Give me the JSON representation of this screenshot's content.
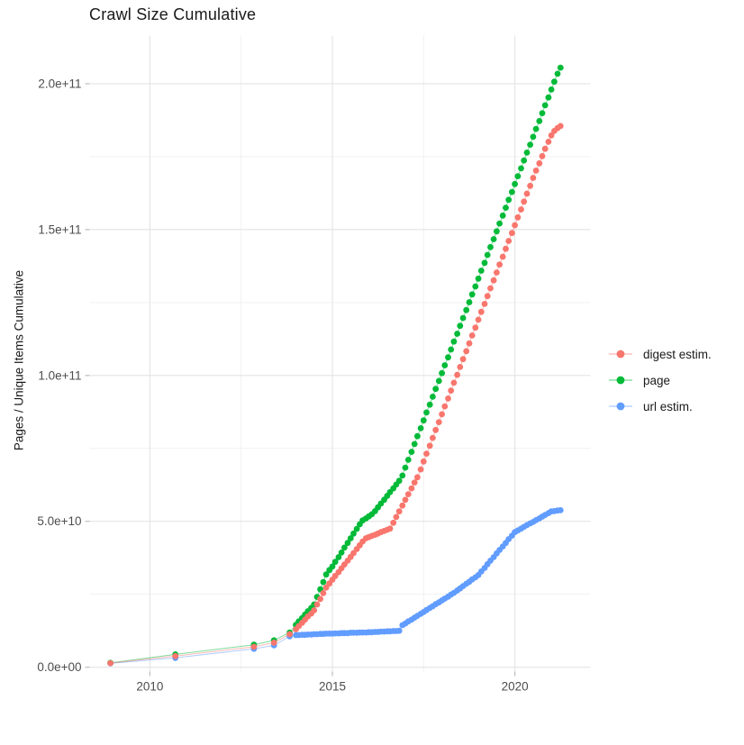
{
  "title": "Crawl Size Cumulative",
  "y_axis_title": "Pages / Unique Items Cumulative",
  "background_color": "#ffffff",
  "grid_major_color": "#e4e4e4",
  "grid_minor_color": "#f1f1f1",
  "tick_mark_color": "#bdbdbd",
  "tick_label_color": "#4d4d4d",
  "chart_data": {
    "type": "scatter",
    "title": "Crawl Size Cumulative",
    "xlabel": "",
    "ylabel": "Pages / Unique Items Cumulative",
    "legend_position": "right",
    "grid": true,
    "y_values_unit": "1e9 (billions of pages / unique items)",
    "xlim": [
      2008.35,
      2022.07
    ],
    "ylim": [
      -1.5,
      216.5
    ],
    "x_ticks": [
      {
        "value": 2010,
        "label": "2010"
      },
      {
        "value": 2015,
        "label": "2015"
      },
      {
        "value": 2020,
        "label": "2020"
      }
    ],
    "x_minor_ticks": [
      2012.5,
      2017.5
    ],
    "y_ticks": [
      {
        "value": 0,
        "label": "0.0e+00"
      },
      {
        "value": 50,
        "label": "5.0e+10"
      },
      {
        "value": 100,
        "label": "1.0e+11"
      },
      {
        "value": 150,
        "label": "1.5e+11"
      },
      {
        "value": 200,
        "label": "2.0e+11"
      }
    ],
    "y_minor_ticks": [
      25,
      75,
      125,
      175
    ],
    "series": [
      {
        "name": "digest estim.",
        "color": "#F8766D",
        "points": [
          [
            2008.92,
            1.4
          ],
          [
            2010.7,
            3.8
          ],
          [
            2012.85,
            7.0
          ],
          [
            2013.4,
            8.4
          ],
          [
            2013.83,
            11.3
          ],
          [
            2014.0,
            13.0
          ],
          [
            2014.08,
            14.1
          ],
          [
            2014.17,
            15.2
          ],
          [
            2014.25,
            16.3
          ],
          [
            2014.33,
            17.4
          ],
          [
            2014.42,
            18.4
          ],
          [
            2014.5,
            19.5
          ],
          [
            2014.58,
            21.5
          ],
          [
            2014.67,
            23.4
          ],
          [
            2014.75,
            25.4
          ],
          [
            2014.83,
            27.3
          ],
          [
            2014.92,
            28.7
          ],
          [
            2015.0,
            30.0
          ],
          [
            2015.08,
            31.3
          ],
          [
            2015.17,
            32.6
          ],
          [
            2015.25,
            33.9
          ],
          [
            2015.33,
            35.2
          ],
          [
            2015.42,
            36.5
          ],
          [
            2015.5,
            37.8
          ],
          [
            2015.58,
            39.1
          ],
          [
            2015.67,
            40.5
          ],
          [
            2015.75,
            41.8
          ],
          [
            2015.83,
            43.1
          ],
          [
            2015.92,
            44.2
          ],
          [
            2016.0,
            44.6
          ],
          [
            2016.08,
            45.0
          ],
          [
            2016.17,
            45.4
          ],
          [
            2016.25,
            45.8
          ],
          [
            2016.33,
            46.3
          ],
          [
            2016.42,
            46.7
          ],
          [
            2016.5,
            47.1
          ],
          [
            2016.58,
            47.5
          ],
          [
            2016.67,
            49.5
          ],
          [
            2016.75,
            51.5
          ],
          [
            2016.83,
            53.4
          ],
          [
            2016.92,
            55.4
          ],
          [
            2017.0,
            57.4
          ],
          [
            2017.08,
            59.3
          ],
          [
            2017.17,
            61.3
          ],
          [
            2017.25,
            63.3
          ],
          [
            2017.33,
            65.1
          ],
          [
            2017.42,
            67.8
          ],
          [
            2017.5,
            70.5
          ],
          [
            2017.58,
            73.2
          ],
          [
            2017.67,
            75.9
          ],
          [
            2017.75,
            78.6
          ],
          [
            2017.83,
            81.3
          ],
          [
            2017.92,
            84.0
          ],
          [
            2018.0,
            86.7
          ],
          [
            2018.08,
            89.4
          ],
          [
            2018.17,
            92.1
          ],
          [
            2018.25,
            94.8
          ],
          [
            2018.33,
            97.5
          ],
          [
            2018.42,
            100.2
          ],
          [
            2018.5,
            102.9
          ],
          [
            2018.58,
            105.6
          ],
          [
            2018.67,
            108.3
          ],
          [
            2018.75,
            111.0
          ],
          [
            2018.83,
            113.7
          ],
          [
            2018.92,
            116.4
          ],
          [
            2019.0,
            119.1
          ],
          [
            2019.08,
            121.8
          ],
          [
            2019.17,
            124.5
          ],
          [
            2019.25,
            127.2
          ],
          [
            2019.33,
            129.9
          ],
          [
            2019.42,
            132.6
          ],
          [
            2019.5,
            135.3
          ],
          [
            2019.58,
            138.0
          ],
          [
            2019.67,
            140.7
          ],
          [
            2019.75,
            143.4
          ],
          [
            2019.83,
            146.1
          ],
          [
            2019.92,
            148.8
          ],
          [
            2020.0,
            151.5
          ],
          [
            2020.08,
            154.2
          ],
          [
            2020.17,
            156.9
          ],
          [
            2020.25,
            159.6
          ],
          [
            2020.33,
            162.3
          ],
          [
            2020.42,
            165.0
          ],
          [
            2020.5,
            167.7
          ],
          [
            2020.58,
            170.2
          ],
          [
            2020.67,
            172.7
          ],
          [
            2020.75,
            175.2
          ],
          [
            2020.83,
            177.7
          ],
          [
            2020.92,
            180.1
          ],
          [
            2021.0,
            182.3
          ],
          [
            2021.08,
            183.8
          ],
          [
            2021.17,
            184.8
          ],
          [
            2021.25,
            185.5
          ]
        ]
      },
      {
        "name": "page",
        "color": "#00BA38",
        "points": [
          [
            2008.92,
            1.5
          ],
          [
            2010.7,
            4.4
          ],
          [
            2012.85,
            7.7
          ],
          [
            2013.4,
            9.2
          ],
          [
            2013.83,
            11.9
          ],
          [
            2014.0,
            14.5
          ],
          [
            2014.08,
            15.7
          ],
          [
            2014.17,
            16.8
          ],
          [
            2014.25,
            18.0
          ],
          [
            2014.33,
            19.2
          ],
          [
            2014.42,
            20.3
          ],
          [
            2014.5,
            21.5
          ],
          [
            2014.58,
            24.1
          ],
          [
            2014.67,
            26.7
          ],
          [
            2014.75,
            29.2
          ],
          [
            2014.83,
            31.8
          ],
          [
            2014.92,
            33.3
          ],
          [
            2015.0,
            34.5
          ],
          [
            2015.08,
            36.1
          ],
          [
            2015.17,
            37.7
          ],
          [
            2015.25,
            39.3
          ],
          [
            2015.33,
            41.0
          ],
          [
            2015.42,
            42.6
          ],
          [
            2015.5,
            44.2
          ],
          [
            2015.58,
            45.8
          ],
          [
            2015.67,
            47.4
          ],
          [
            2015.75,
            49.0
          ],
          [
            2015.83,
            50.3
          ],
          [
            2015.92,
            51.0
          ],
          [
            2016.0,
            51.7
          ],
          [
            2016.08,
            52.4
          ],
          [
            2016.17,
            53.5
          ],
          [
            2016.25,
            54.8
          ],
          [
            2016.33,
            56.1
          ],
          [
            2016.42,
            57.4
          ],
          [
            2016.5,
            58.7
          ],
          [
            2016.58,
            60.0
          ],
          [
            2016.67,
            61.3
          ],
          [
            2016.75,
            62.6
          ],
          [
            2016.83,
            63.9
          ],
          [
            2016.92,
            65.7
          ],
          [
            2017.0,
            68.4
          ],
          [
            2017.08,
            71.1
          ],
          [
            2017.17,
            73.8
          ],
          [
            2017.25,
            76.5
          ],
          [
            2017.33,
            79.2
          ],
          [
            2017.42,
            81.9
          ],
          [
            2017.5,
            84.6
          ],
          [
            2017.58,
            87.3
          ],
          [
            2017.67,
            90.0
          ],
          [
            2017.75,
            92.7
          ],
          [
            2017.83,
            95.4
          ],
          [
            2017.92,
            98.1
          ],
          [
            2018.0,
            100.8
          ],
          [
            2018.08,
            103.5
          ],
          [
            2018.17,
            106.2
          ],
          [
            2018.25,
            108.9
          ],
          [
            2018.33,
            111.6
          ],
          [
            2018.42,
            114.3
          ],
          [
            2018.5,
            117.0
          ],
          [
            2018.58,
            119.7
          ],
          [
            2018.67,
            122.4
          ],
          [
            2018.75,
            125.1
          ],
          [
            2018.83,
            127.8
          ],
          [
            2018.92,
            130.5
          ],
          [
            2019.0,
            133.2
          ],
          [
            2019.08,
            135.9
          ],
          [
            2019.17,
            138.6
          ],
          [
            2019.25,
            141.3
          ],
          [
            2019.33,
            144.0
          ],
          [
            2019.42,
            146.7
          ],
          [
            2019.5,
            149.4
          ],
          [
            2019.58,
            152.1
          ],
          [
            2019.67,
            154.8
          ],
          [
            2019.75,
            157.5
          ],
          [
            2019.83,
            160.2
          ],
          [
            2019.92,
            162.9
          ],
          [
            2020.0,
            165.6
          ],
          [
            2020.08,
            168.3
          ],
          [
            2020.17,
            171.0
          ],
          [
            2020.25,
            173.7
          ],
          [
            2020.33,
            176.4
          ],
          [
            2020.42,
            179.1
          ],
          [
            2020.5,
            181.8
          ],
          [
            2020.58,
            184.5
          ],
          [
            2020.67,
            187.2
          ],
          [
            2020.75,
            189.9
          ],
          [
            2020.83,
            192.6
          ],
          [
            2020.92,
            195.3
          ],
          [
            2021.0,
            198.0
          ],
          [
            2021.08,
            200.7
          ],
          [
            2021.17,
            203.4
          ],
          [
            2021.25,
            205.5
          ]
        ]
      },
      {
        "name": "url estim.",
        "color": "#619CFF",
        "points": [
          [
            2008.92,
            1.3
          ],
          [
            2010.7,
            3.2
          ],
          [
            2012.85,
            6.3
          ],
          [
            2013.4,
            7.5
          ],
          [
            2013.83,
            10.6
          ],
          [
            2014.0,
            11.0
          ],
          [
            2014.08,
            11.0
          ],
          [
            2014.17,
            11.1
          ],
          [
            2014.25,
            11.1
          ],
          [
            2014.33,
            11.2
          ],
          [
            2014.42,
            11.2
          ],
          [
            2014.5,
            11.3
          ],
          [
            2014.58,
            11.3
          ],
          [
            2014.67,
            11.4
          ],
          [
            2014.75,
            11.4
          ],
          [
            2014.83,
            11.5
          ],
          [
            2014.92,
            11.5
          ],
          [
            2015.0,
            11.5
          ],
          [
            2015.08,
            11.6
          ],
          [
            2015.17,
            11.6
          ],
          [
            2015.25,
            11.7
          ],
          [
            2015.33,
            11.7
          ],
          [
            2015.42,
            11.7
          ],
          [
            2015.5,
            11.8
          ],
          [
            2015.58,
            11.8
          ],
          [
            2015.67,
            11.8
          ],
          [
            2015.75,
            11.9
          ],
          [
            2015.83,
            11.9
          ],
          [
            2015.92,
            11.9
          ],
          [
            2016.0,
            12.0
          ],
          [
            2016.08,
            12.0
          ],
          [
            2016.17,
            12.1
          ],
          [
            2016.25,
            12.1
          ],
          [
            2016.33,
            12.2
          ],
          [
            2016.42,
            12.2
          ],
          [
            2016.5,
            12.3
          ],
          [
            2016.58,
            12.3
          ],
          [
            2016.67,
            12.4
          ],
          [
            2016.75,
            12.4
          ],
          [
            2016.83,
            12.5
          ],
          [
            2016.92,
            14.4
          ],
          [
            2017.0,
            15.0
          ],
          [
            2017.08,
            15.7
          ],
          [
            2017.17,
            16.3
          ],
          [
            2017.25,
            17.0
          ],
          [
            2017.33,
            17.6
          ],
          [
            2017.42,
            18.3
          ],
          [
            2017.5,
            18.9
          ],
          [
            2017.58,
            19.6
          ],
          [
            2017.67,
            20.3
          ],
          [
            2017.75,
            20.9
          ],
          [
            2017.83,
            21.6
          ],
          [
            2017.92,
            22.2
          ],
          [
            2018.0,
            22.9
          ],
          [
            2018.08,
            23.5
          ],
          [
            2018.17,
            24.2
          ],
          [
            2018.25,
            24.9
          ],
          [
            2018.33,
            25.5
          ],
          [
            2018.42,
            26.3
          ],
          [
            2018.5,
            27.0
          ],
          [
            2018.58,
            27.8
          ],
          [
            2018.67,
            28.6
          ],
          [
            2018.75,
            29.3
          ],
          [
            2018.83,
            30.1
          ],
          [
            2018.92,
            30.8
          ],
          [
            2019.0,
            31.6
          ],
          [
            2019.08,
            32.8
          ],
          [
            2019.17,
            34.0
          ],
          [
            2019.25,
            35.3
          ],
          [
            2019.33,
            36.5
          ],
          [
            2019.42,
            37.7
          ],
          [
            2019.5,
            39.0
          ],
          [
            2019.58,
            40.2
          ],
          [
            2019.67,
            41.4
          ],
          [
            2019.75,
            42.6
          ],
          [
            2019.83,
            43.9
          ],
          [
            2019.92,
            45.1
          ],
          [
            2020.0,
            46.3
          ],
          [
            2020.08,
            46.9
          ],
          [
            2020.17,
            47.5
          ],
          [
            2020.25,
            48.1
          ],
          [
            2020.33,
            48.7
          ],
          [
            2020.42,
            49.3
          ],
          [
            2020.5,
            49.8
          ],
          [
            2020.58,
            50.4
          ],
          [
            2020.67,
            51.0
          ],
          [
            2020.75,
            51.6
          ],
          [
            2020.83,
            52.2
          ],
          [
            2020.92,
            52.8
          ],
          [
            2021.0,
            53.4
          ],
          [
            2021.08,
            53.5
          ],
          [
            2021.17,
            53.7
          ],
          [
            2021.25,
            53.8
          ]
        ]
      }
    ]
  }
}
